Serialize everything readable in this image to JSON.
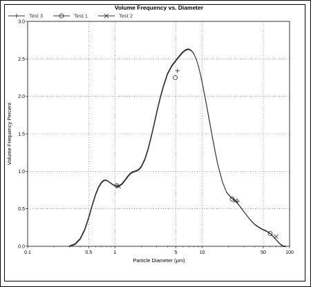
{
  "chart_data": {
    "type": "line",
    "title": "Volume Frequency vs. Diameter",
    "xlabel": "Particle Diameter (µm)",
    "ylabel": "Volume Frequency Percent",
    "x_scale": "log",
    "xlim": [
      0.1,
      100
    ],
    "ylim": [
      0,
      3.0
    ],
    "x_ticks": [
      {
        "value": 0.1,
        "label": "0.1"
      },
      {
        "value": 0.5,
        "label": "0.5"
      },
      {
        "value": 1,
        "label": "1"
      },
      {
        "value": 5,
        "label": "5"
      },
      {
        "value": 10,
        "label": "10"
      },
      {
        "value": 50,
        "label": "50"
      },
      {
        "value": 100,
        "label": "100"
      }
    ],
    "y_ticks": [
      "0.0",
      "0.5",
      "1.0",
      "1.5",
      "2.0",
      "2.5",
      "3.0"
    ],
    "grid": true,
    "legend_position": "top",
    "series": [
      {
        "name": "Test 3",
        "marker": "plus",
        "marker_x": [
          5.2,
          25.5
        ],
        "marker_y": [
          2.34,
          0.6
        ]
      },
      {
        "name": "Test 1",
        "marker": "circle",
        "marker_x": [
          1.05,
          4.9,
          22.0,
          60.0
        ],
        "marker_y": [
          0.81,
          2.25,
          0.63,
          0.17
        ]
      },
      {
        "name": "Test 2",
        "marker": "x",
        "marker_x": [
          1.1,
          24.0,
          70.0
        ],
        "marker_y": [
          0.8,
          0.61,
          0.13
        ]
      }
    ],
    "x": [
      0.3,
      0.35,
      0.4,
      0.45,
      0.5,
      0.55,
      0.6,
      0.65,
      0.7,
      0.75,
      0.8,
      0.85,
      0.9,
      0.95,
      1.0,
      1.05,
      1.1,
      1.2,
      1.3,
      1.4,
      1.5,
      1.6,
      1.7,
      1.8,
      1.9,
      2.0,
      2.2,
      2.4,
      2.6,
      2.8,
      3.0,
      3.3,
      3.6,
      4.0,
      4.5,
      5.0,
      5.5,
      6.0,
      6.5,
      7.0,
      7.5,
      8.0,
      8.5,
      9.0,
      9.5,
      10,
      11,
      12,
      13,
      14,
      15,
      17,
      19,
      21,
      23,
      25,
      28,
      31,
      35,
      40,
      45,
      50,
      55,
      60,
      65,
      70,
      75,
      80,
      85,
      90
    ],
    "y": [
      0.0,
      0.03,
      0.1,
      0.22,
      0.38,
      0.55,
      0.69,
      0.79,
      0.85,
      0.88,
      0.88,
      0.86,
      0.84,
      0.82,
      0.81,
      0.8,
      0.8,
      0.83,
      0.88,
      0.93,
      0.97,
      0.99,
      1.0,
      1.01,
      1.03,
      1.06,
      1.16,
      1.3,
      1.46,
      1.62,
      1.78,
      1.98,
      2.14,
      2.3,
      2.41,
      2.48,
      2.54,
      2.59,
      2.62,
      2.63,
      2.61,
      2.57,
      2.5,
      2.41,
      2.3,
      2.18,
      1.93,
      1.69,
      1.47,
      1.27,
      1.1,
      0.86,
      0.72,
      0.66,
      0.62,
      0.58,
      0.51,
      0.44,
      0.36,
      0.29,
      0.25,
      0.22,
      0.2,
      0.17,
      0.13,
      0.09,
      0.05,
      0.02,
      0.0,
      0.0
    ]
  }
}
